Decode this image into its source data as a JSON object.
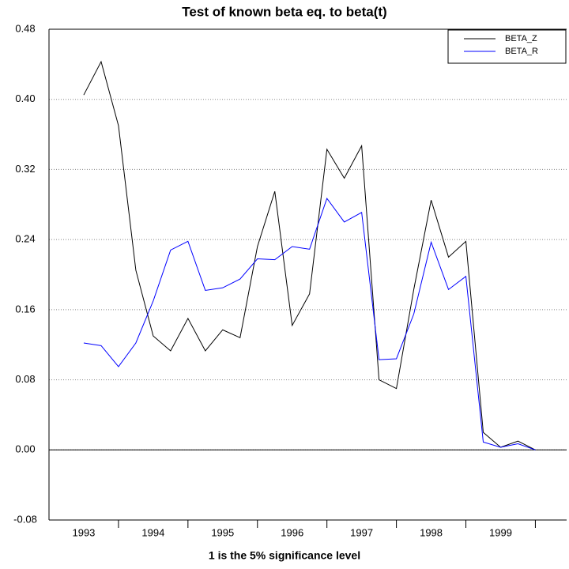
{
  "chart_data": {
    "type": "line",
    "title": "Test of known beta eq. to beta(t)",
    "x_label": "1 is the 5% significance level",
    "x": [
      1993.5,
      1993.75,
      1994,
      1994.25,
      1994.5,
      1994.75,
      1995,
      1995.25,
      1995.5,
      1995.75,
      1996,
      1996.25,
      1996.5,
      1996.75,
      1997,
      1997.25,
      1997.5,
      1997.75,
      1998,
      1998.25,
      1998.5,
      1998.75,
      1999,
      1999.25,
      1999.5,
      1999.75,
      2000
    ],
    "series": [
      {
        "name": "BETA_Z",
        "color": "#000000",
        "values": [
          0.405,
          0.443,
          0.37,
          0.205,
          0.13,
          0.113,
          0.15,
          0.113,
          0.137,
          0.128,
          0.232,
          0.295,
          0.142,
          0.178,
          0.343,
          0.31,
          0.347,
          0.08,
          0.07,
          0.183,
          0.285,
          0.22,
          0.238,
          0.02,
          0.003,
          0.01,
          0.0
        ]
      },
      {
        "name": "BETA_R",
        "color": "#0000ff",
        "values": [
          0.122,
          0.119,
          0.095,
          0.122,
          0.17,
          0.228,
          0.238,
          0.182,
          0.185,
          0.195,
          0.218,
          0.217,
          0.232,
          0.229,
          0.287,
          0.26,
          0.271,
          0.103,
          0.104,
          0.155,
          0.237,
          0.183,
          0.198,
          0.009,
          0.003,
          0.007,
          0.0
        ]
      }
    ],
    "xlim": [
      1993,
      2000.45
    ],
    "xticks": [
      {
        "value": 1993.5,
        "label": "1993"
      },
      {
        "value": 1994.5,
        "label": "1994"
      },
      {
        "value": 1995.5,
        "label": "1995"
      },
      {
        "value": 1996.5,
        "label": "1996"
      },
      {
        "value": 1997.5,
        "label": "1997"
      },
      {
        "value": 1998.5,
        "label": "1998"
      },
      {
        "value": 1999.5,
        "label": "1999"
      }
    ],
    "ylim": [
      -0.08,
      0.48
    ],
    "yticks": [
      {
        "value": -0.08,
        "label": "-0.08"
      },
      {
        "value": 0,
        "label": "0.00"
      },
      {
        "value": 0.08,
        "label": "0.08"
      },
      {
        "value": 0.16,
        "label": "0.16"
      },
      {
        "value": 0.24,
        "label": "0.24"
      },
      {
        "value": 0.32,
        "label": "0.32"
      },
      {
        "value": 0.4,
        "label": "0.40"
      },
      {
        "value": 0.48,
        "label": "0.48"
      }
    ],
    "grid": true,
    "legend": "upper right"
  }
}
